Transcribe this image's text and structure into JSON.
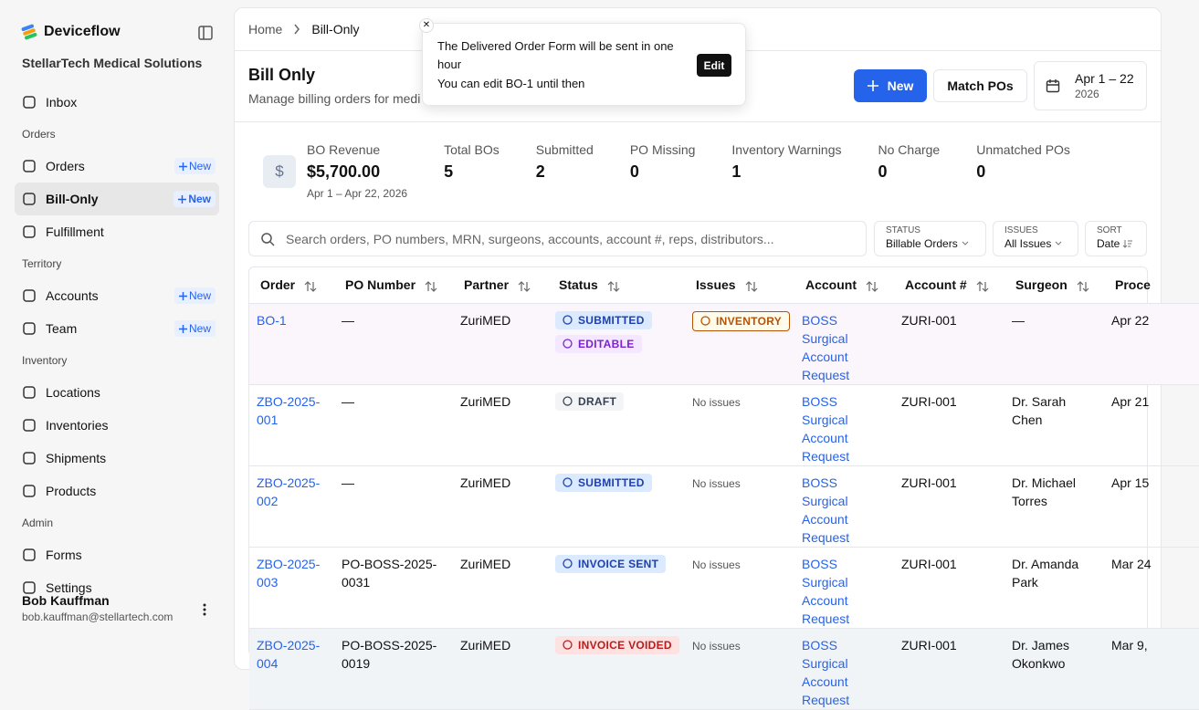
{
  "sidebar": {
    "brand": "Deviceflow",
    "org": "StellarTech Medical Solutions",
    "top": [
      {
        "label": "Inbox"
      }
    ],
    "groups": [
      {
        "title": "Orders",
        "items": [
          {
            "label": "Orders",
            "badge": "New"
          },
          {
            "label": "Bill-Only",
            "badge": "New",
            "active": true
          },
          {
            "label": "Fulfillment"
          }
        ]
      },
      {
        "title": "Territory",
        "items": [
          {
            "label": "Accounts",
            "badge": "New"
          },
          {
            "label": "Team",
            "badge": "New"
          }
        ]
      },
      {
        "title": "Inventory",
        "items": [
          {
            "label": "Locations"
          },
          {
            "label": "Inventories"
          },
          {
            "label": "Shipments"
          },
          {
            "label": "Products"
          }
        ]
      },
      {
        "title": "Admin",
        "items": [
          {
            "label": "Forms"
          },
          {
            "label": "Settings"
          }
        ]
      }
    ],
    "user": {
      "name": "Bob Kauffman",
      "email": "bob.kauffman@stellartech.com"
    }
  },
  "breadcrumb": [
    "Home",
    "Bill-Only"
  ],
  "toast": {
    "message": "The Delivered Order Form will be sent in one hour",
    "detail": "You can edit BO-1 until then",
    "action": "Edit"
  },
  "header": {
    "title": "Bill Only",
    "subtitle": "Manage billing orders for medi",
    "new_button": "New",
    "match_button": "Match POs",
    "date_range": "Apr 1 – 22",
    "date_year": "2026"
  },
  "stats": [
    {
      "label": "BO Revenue",
      "value": "$5,700.00",
      "note": "Apr 1 – Apr 22, 2026"
    },
    {
      "label": "Total BOs",
      "value": 5
    },
    {
      "label": "Submitted",
      "value": 2
    },
    {
      "label": "PO Missing",
      "value": 0
    },
    {
      "label": "Inventory Warnings",
      "value": 1
    },
    {
      "label": "No Charge",
      "value": 0
    },
    {
      "label": "Unmatched POs",
      "value": 0
    }
  ],
  "search": {
    "placeholder": "Search orders, PO numbers, MRN, surgeons, accounts, account #, reps, distributors..."
  },
  "filters": [
    {
      "label": "STATUS",
      "value": "Billable Orders"
    },
    {
      "label": "ISSUES",
      "value": "All Issues"
    },
    {
      "label": "SORT",
      "value": "Date"
    }
  ],
  "table": {
    "columns": [
      "Order",
      "PO Number",
      "Partner",
      "Status",
      "Issues",
      "Account",
      "Account #",
      "Surgeon",
      "Proce"
    ],
    "rows": [
      {
        "order": "BO-1",
        "po": "—",
        "partner": "ZuriMED",
        "status": [
          {
            "label": "SUBMITTED",
            "color": "#1e40af",
            "bg": "#dbeafe"
          },
          {
            "label": "EDITABLE",
            "color": "#7e22ce",
            "bg": "#f3e8ff"
          }
        ],
        "issues": {
          "label": "INVENTORY",
          "color": "#b45309",
          "bg": "#fffbeb"
        },
        "account": "BOSS Surgical Account Request",
        "account_no": "ZURI-001",
        "surgeon": "—",
        "date": "Apr 22",
        "bg": "#fbf5fc"
      },
      {
        "order": "ZBO-2025-001",
        "po": "—",
        "partner": "ZuriMED",
        "status": [
          {
            "label": "DRAFT",
            "color": "#374151",
            "bg": "#f3f4f6"
          }
        ],
        "issues": {
          "label": "No issues"
        },
        "account": "BOSS Surgical Account Request",
        "account_no": "ZURI-001",
        "surgeon": "Dr. Sarah Chen",
        "date": "Apr 21"
      },
      {
        "order": "ZBO-2025-002",
        "po": "—",
        "partner": "ZuriMED",
        "status": [
          {
            "label": "SUBMITTED",
            "color": "#1e40af",
            "bg": "#dbeafe"
          }
        ],
        "issues": {
          "label": "No issues"
        },
        "account": "BOSS Surgical Account Request",
        "account_no": "ZURI-001",
        "surgeon": "Dr. Michael Torres",
        "date": "Apr 15"
      },
      {
        "order": "ZBO-2025-003",
        "po": "PO-BOSS-2025-0031",
        "partner": "ZuriMED",
        "status": [
          {
            "label": "INVOICE SENT",
            "color": "#1e40af",
            "bg": "#dbeafe"
          }
        ],
        "issues": {
          "label": "No issues"
        },
        "account": "BOSS Surgical Account Request",
        "account_no": "ZURI-001",
        "surgeon": "Dr. Amanda Park",
        "date": "Mar 24"
      },
      {
        "order": "ZBO-2025-004",
        "po": "PO-BOSS-2025-0019",
        "partner": "ZuriMED",
        "status": [
          {
            "label": "INVOICE VOIDED",
            "color": "#b91c1c",
            "bg": "#fee2e2"
          }
        ],
        "issues": {
          "label": "No issues"
        },
        "account": "BOSS Surgical Account Request",
        "account_no": "ZURI-001",
        "surgeon": "Dr. James Okonkwo",
        "date": "Mar 9,",
        "bg": "#f1f4f7"
      }
    ]
  }
}
